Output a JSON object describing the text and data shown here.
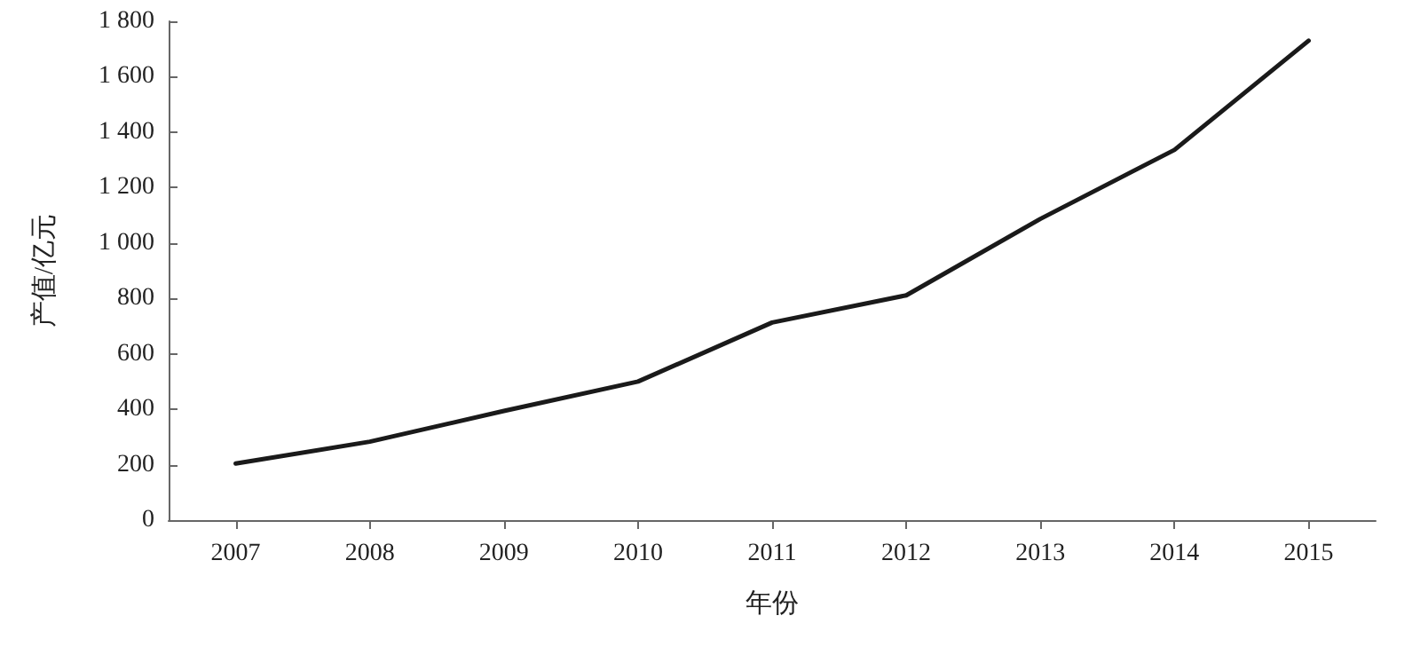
{
  "chart_data": {
    "type": "line",
    "xlabel": "年份",
    "ylabel": "产值/亿元",
    "categories": [
      "2007",
      "2008",
      "2009",
      "2010",
      "2011",
      "2012",
      "2013",
      "2014",
      "2015"
    ],
    "series": [
      {
        "color": "#1a1a1a",
        "values": [
          204,
          283,
          394,
          500,
          713,
          811,
          1087,
          1336,
          1730
        ]
      }
    ],
    "ylim": [
      0,
      1800
    ],
    "yticks": [
      0,
      200,
      400,
      600,
      800,
      {
        "value": 1000,
        "label": "1 000"
      },
      {
        "value": 1200,
        "label": "1 200"
      },
      {
        "value": 1400,
        "label": "1 400"
      },
      {
        "value": 1600,
        "label": "1 600"
      },
      {
        "value": 1800,
        "label": "1 800"
      }
    ],
    "marker": "none",
    "line_style": "solid"
  }
}
